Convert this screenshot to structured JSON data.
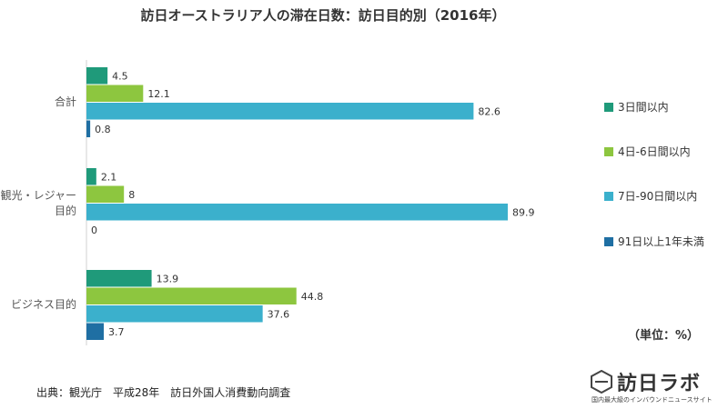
{
  "chart_data": {
    "type": "bar",
    "orientation": "horizontal",
    "title": "訪日オーストラリア人の滞在日数：訪日目的別（2016年）",
    "categories": [
      "合計",
      "観光・レジャー目的",
      "ビジネス目的"
    ],
    "category_lines": [
      [
        "合計"
      ],
      [
        "観光・レジャー",
        "目的"
      ],
      [
        "ビジネス目的"
      ]
    ],
    "series": [
      {
        "name": "3日間以内",
        "color": "#1f9a7a",
        "values": [
          4.5,
          2.1,
          13.9
        ]
      },
      {
        "name": "4日-6日間以内",
        "color": "#8dc63f",
        "values": [
          12.1,
          8,
          44.8
        ]
      },
      {
        "name": "7日-90日間以内",
        "color": "#3bb0cc",
        "values": [
          82.6,
          89.9,
          37.6
        ]
      },
      {
        "name": "91日以上1年未満",
        "color": "#1f6fa3",
        "values": [
          0.8,
          0,
          3.7
        ]
      }
    ],
    "value_labels": [
      [
        "4.5",
        "2.1",
        "13.9"
      ],
      [
        "12.1",
        "8",
        "44.8"
      ],
      [
        "82.6",
        "89.9",
        "37.6"
      ],
      [
        "0.8",
        "0",
        "3.7"
      ]
    ],
    "xlim": [
      0,
      100
    ],
    "grid": false,
    "legend_position": "right"
  },
  "unit_label": "（単位：%）",
  "source": "出典：観光庁　平成28年　訪日外国人消費動向調査",
  "logo": {
    "name": "訪日ラボ",
    "tagline": "国内最大級のインバウンドニュースサイト"
  }
}
